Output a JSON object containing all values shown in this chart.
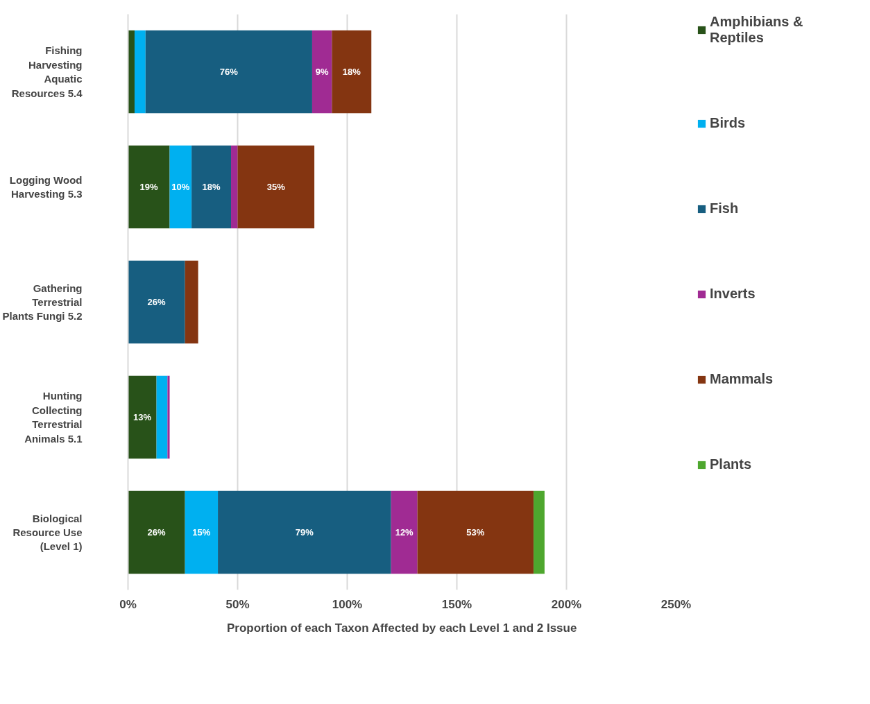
{
  "chart_data": {
    "type": "bar",
    "orientation": "horizontal",
    "stacked": true,
    "categories": [
      "Fishing Harvesting Aquatic Resources 5.4",
      "Logging Wood Harvesting 5.3",
      "Gathering Terrestrial Plants Fungi 5.2",
      "Hunting Collecting Terrestrial Animals 5.1",
      "Biological Resource Use (Level 1)"
    ],
    "series": [
      {
        "name": "Amphibians & Reptiles",
        "color": "#285219",
        "values": [
          3,
          19,
          0,
          13,
          26
        ],
        "value_labels": [
          null,
          "19%",
          null,
          "13%",
          "26%"
        ]
      },
      {
        "name": "Birds",
        "color": "#00b0f0",
        "values": [
          5,
          10,
          0,
          5,
          15
        ],
        "value_labels": [
          null,
          "10%",
          null,
          null,
          "15%"
        ]
      },
      {
        "name": "Fish",
        "color": "#175e80",
        "values": [
          76,
          18,
          26,
          0,
          79
        ],
        "value_labels": [
          "76%",
          "18%",
          "26%",
          null,
          "79%"
        ]
      },
      {
        "name": "Inverts",
        "color": "#a02b93",
        "values": [
          9,
          3,
          0,
          1,
          12
        ],
        "value_labels": [
          "9%",
          null,
          null,
          null,
          "12%"
        ]
      },
      {
        "name": "Mammals",
        "color": "#843511",
        "values": [
          18,
          35,
          6,
          0,
          53
        ],
        "value_labels": [
          "18%",
          "35%",
          null,
          null,
          "53%"
        ]
      },
      {
        "name": "Plants",
        "color": "#4ea72e",
        "values": [
          0,
          0,
          0,
          0,
          5
        ],
        "value_labels": [
          null,
          null,
          null,
          null,
          null
        ]
      }
    ],
    "xlim": [
      0,
      250
    ],
    "xticks": [
      {
        "value": 0,
        "label": "0%"
      },
      {
        "value": 50,
        "label": "50%"
      },
      {
        "value": 100,
        "label": "100%"
      },
      {
        "value": 150,
        "label": "150%"
      },
      {
        "value": 200,
        "label": "200%"
      },
      {
        "value": 250,
        "label": "250%"
      }
    ],
    "xlabel": "Proportion of each Taxon Affected by each Level 1 and 2 Issue",
    "grid": "x",
    "legend": "right"
  }
}
